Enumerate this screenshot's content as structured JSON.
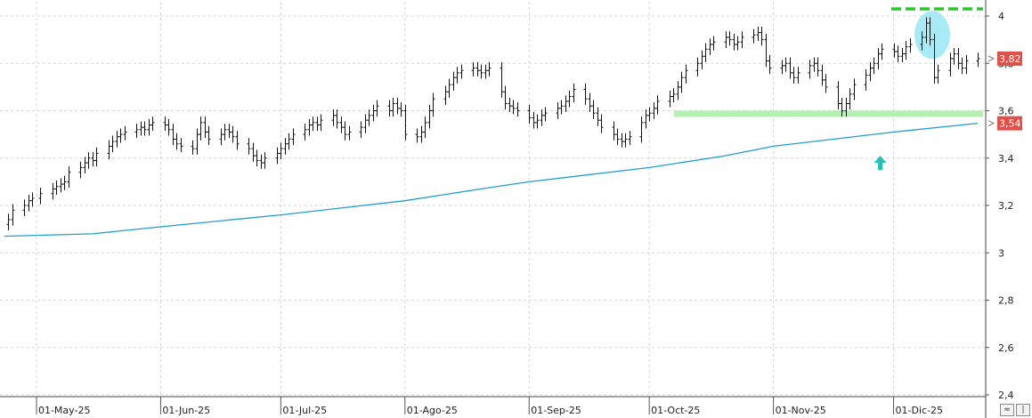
{
  "chart_data": {
    "type": "ohlc",
    "title": "",
    "x_tick_labels": [
      "01-May-25",
      "01-Jun-25",
      "01-Jul-25",
      "01-Ago-25",
      "01-Sep-25",
      "01-Oct-25",
      "01-Nov-25",
      "01-Dic-25"
    ],
    "y_tick_labels": [
      "2,4",
      "2,6",
      "2,8",
      "3",
      "3,2",
      "3,4",
      "3,6",
      "3,8",
      "4"
    ],
    "y_ticks": [
      2.4,
      2.6,
      2.8,
      3.0,
      3.2,
      3.4,
      3.6,
      3.8,
      4.0
    ],
    "ylim": [
      2.38,
      4.05
    ],
    "x_range": [
      "2025-04-23",
      "2025-12-22"
    ],
    "grid": true,
    "price_series": {
      "name": "",
      "points": [
        [
          "2025-04-24",
          3.14
        ],
        [
          "2025-04-25",
          3.18
        ],
        [
          "2025-04-28",
          3.2
        ],
        [
          "2025-04-29",
          3.22
        ],
        [
          "2025-04-30",
          3.23
        ],
        [
          "2025-05-02",
          3.25
        ],
        [
          "2025-05-05",
          3.27
        ],
        [
          "2025-05-06",
          3.28
        ],
        [
          "2025-05-07",
          3.29
        ],
        [
          "2025-05-08",
          3.3
        ],
        [
          "2025-05-09",
          3.34
        ],
        [
          "2025-05-12",
          3.36
        ],
        [
          "2025-05-13",
          3.38
        ],
        [
          "2025-05-14",
          3.4
        ],
        [
          "2025-05-15",
          3.39
        ],
        [
          "2025-05-16",
          3.42
        ],
        [
          "2025-05-19",
          3.45
        ],
        [
          "2025-05-20",
          3.47
        ],
        [
          "2025-05-21",
          3.49
        ],
        [
          "2025-05-22",
          3.5
        ],
        [
          "2025-05-23",
          3.51
        ],
        [
          "2025-05-26",
          3.52
        ],
        [
          "2025-05-27",
          3.53
        ],
        [
          "2025-05-28",
          3.52
        ],
        [
          "2025-05-29",
          3.54
        ],
        [
          "2025-05-30",
          3.55
        ],
        [
          "2025-06-02",
          3.54
        ],
        [
          "2025-06-03",
          3.52
        ],
        [
          "2025-06-04",
          3.48
        ],
        [
          "2025-06-05",
          3.46
        ],
        [
          "2025-06-06",
          3.45
        ],
        [
          "2025-06-09",
          3.44
        ],
        [
          "2025-06-10",
          3.5
        ],
        [
          "2025-06-11",
          3.55
        ],
        [
          "2025-06-12",
          3.51
        ],
        [
          "2025-06-13",
          3.48
        ],
        [
          "2025-06-16",
          3.5
        ],
        [
          "2025-06-17",
          3.52
        ],
        [
          "2025-06-18",
          3.51
        ],
        [
          "2025-06-19",
          3.49
        ],
        [
          "2025-06-20",
          3.46
        ],
        [
          "2025-06-23",
          3.44
        ],
        [
          "2025-06-24",
          3.41
        ],
        [
          "2025-06-25",
          3.39
        ],
        [
          "2025-06-26",
          3.38
        ],
        [
          "2025-06-27",
          3.4
        ],
        [
          "2025-06-30",
          3.42
        ],
        [
          "2025-07-01",
          3.44
        ],
        [
          "2025-07-02",
          3.46
        ],
        [
          "2025-07-03",
          3.48
        ],
        [
          "2025-07-04",
          3.5
        ],
        [
          "2025-07-07",
          3.52
        ],
        [
          "2025-07-08",
          3.54
        ],
        [
          "2025-07-09",
          3.55
        ],
        [
          "2025-07-10",
          3.54
        ],
        [
          "2025-07-11",
          3.56
        ],
        [
          "2025-07-14",
          3.58
        ],
        [
          "2025-07-15",
          3.55
        ],
        [
          "2025-07-16",
          3.53
        ],
        [
          "2025-07-17",
          3.5
        ],
        [
          "2025-07-18",
          3.51
        ],
        [
          "2025-07-21",
          3.53
        ],
        [
          "2025-07-22",
          3.56
        ],
        [
          "2025-07-23",
          3.58
        ],
        [
          "2025-07-24",
          3.6
        ],
        [
          "2025-07-25",
          3.62
        ],
        [
          "2025-07-28",
          3.6
        ],
        [
          "2025-07-29",
          3.63
        ],
        [
          "2025-07-30",
          3.61
        ],
        [
          "2025-07-31",
          3.6
        ],
        [
          "2025-08-01",
          3.5
        ],
        [
          "2025-08-04",
          3.49
        ],
        [
          "2025-08-05",
          3.51
        ],
        [
          "2025-08-06",
          3.55
        ],
        [
          "2025-08-07",
          3.6
        ],
        [
          "2025-08-08",
          3.65
        ],
        [
          "2025-08-11",
          3.68
        ],
        [
          "2025-08-12",
          3.71
        ],
        [
          "2025-08-13",
          3.74
        ],
        [
          "2025-08-14",
          3.76
        ],
        [
          "2025-08-15",
          3.77
        ],
        [
          "2025-08-18",
          3.78
        ],
        [
          "2025-08-19",
          3.77
        ],
        [
          "2025-08-20",
          3.76
        ],
        [
          "2025-08-21",
          3.77
        ],
        [
          "2025-08-22",
          3.78
        ],
        [
          "2025-08-25",
          3.68
        ],
        [
          "2025-08-26",
          3.63
        ],
        [
          "2025-08-27",
          3.62
        ],
        [
          "2025-08-28",
          3.61
        ],
        [
          "2025-08-29",
          3.6
        ],
        [
          "2025-09-01",
          3.57
        ],
        [
          "2025-09-02",
          3.55
        ],
        [
          "2025-09-03",
          3.56
        ],
        [
          "2025-09-04",
          3.58
        ],
        [
          "2025-09-05",
          3.59
        ],
        [
          "2025-09-08",
          3.61
        ],
        [
          "2025-09-09",
          3.62
        ],
        [
          "2025-09-10",
          3.64
        ],
        [
          "2025-09-11",
          3.66
        ],
        [
          "2025-09-12",
          3.69
        ],
        [
          "2025-09-15",
          3.65
        ],
        [
          "2025-09-16",
          3.62
        ],
        [
          "2025-09-17",
          3.59
        ],
        [
          "2025-09-18",
          3.56
        ],
        [
          "2025-09-19",
          3.53
        ],
        [
          "2025-09-22",
          3.5
        ],
        [
          "2025-09-23",
          3.48
        ],
        [
          "2025-09-24",
          3.47
        ],
        [
          "2025-09-25",
          3.48
        ],
        [
          "2025-09-26",
          3.49
        ],
        [
          "2025-09-29",
          3.55
        ],
        [
          "2025-09-30",
          3.58
        ],
        [
          "2025-10-01",
          3.59
        ],
        [
          "2025-10-02",
          3.61
        ],
        [
          "2025-10-03",
          3.64
        ],
        [
          "2025-10-06",
          3.66
        ],
        [
          "2025-10-07",
          3.67
        ],
        [
          "2025-10-08",
          3.7
        ],
        [
          "2025-10-09",
          3.74
        ],
        [
          "2025-10-10",
          3.77
        ],
        [
          "2025-10-13",
          3.8
        ],
        [
          "2025-10-14",
          3.83
        ],
        [
          "2025-10-15",
          3.86
        ],
        [
          "2025-10-16",
          3.88
        ],
        [
          "2025-10-17",
          3.89
        ],
        [
          "2025-10-20",
          3.91
        ],
        [
          "2025-10-21",
          3.9
        ],
        [
          "2025-10-22",
          3.88
        ],
        [
          "2025-10-23",
          3.89
        ],
        [
          "2025-10-24",
          3.91
        ],
        [
          "2025-10-27",
          3.92
        ],
        [
          "2025-10-28",
          3.93
        ],
        [
          "2025-10-29",
          3.9
        ],
        [
          "2025-10-30",
          3.81
        ],
        [
          "2025-10-31",
          3.78
        ],
        [
          "2025-11-03",
          3.79
        ],
        [
          "2025-11-04",
          3.8
        ],
        [
          "2025-11-05",
          3.76
        ],
        [
          "2025-11-06",
          3.74
        ],
        [
          "2025-11-07",
          3.76
        ],
        [
          "2025-11-10",
          3.79
        ],
        [
          "2025-11-11",
          3.8
        ],
        [
          "2025-11-12",
          3.77
        ],
        [
          "2025-11-13",
          3.73
        ],
        [
          "2025-11-14",
          3.7
        ],
        [
          "2025-11-17",
          3.63
        ],
        [
          "2025-11-18",
          3.6
        ],
        [
          "2025-11-19",
          3.63
        ],
        [
          "2025-11-20",
          3.67
        ],
        [
          "2025-11-21",
          3.71
        ],
        [
          "2025-11-24",
          3.75
        ],
        [
          "2025-11-25",
          3.78
        ],
        [
          "2025-11-26",
          3.8
        ],
        [
          "2025-11-27",
          3.84
        ],
        [
          "2025-11-28",
          3.86
        ],
        [
          "2025-12-01",
          3.85
        ],
        [
          "2025-12-02",
          3.83
        ],
        [
          "2025-12-03",
          3.84
        ],
        [
          "2025-12-04",
          3.87
        ],
        [
          "2025-12-05",
          3.88
        ],
        [
          "2025-12-08",
          3.91
        ],
        [
          "2025-12-09",
          3.97
        ],
        [
          "2025-12-10",
          3.9
        ],
        [
          "2025-12-11",
          3.74
        ],
        [
          "2025-12-12",
          3.77
        ],
        [
          "2025-12-15",
          3.82
        ],
        [
          "2025-12-16",
          3.84
        ],
        [
          "2025-12-17",
          3.8
        ],
        [
          "2025-12-18",
          3.78
        ],
        [
          "2025-12-19",
          3.81
        ],
        [
          "2025-12-22",
          3.82
        ]
      ]
    },
    "moving_average": {
      "name": "",
      "points": [
        [
          "2025-04-23",
          3.07
        ],
        [
          "2025-05-15",
          3.08
        ],
        [
          "2025-06-01",
          3.11
        ],
        [
          "2025-07-01",
          3.16
        ],
        [
          "2025-08-01",
          3.22
        ],
        [
          "2025-08-20",
          3.27
        ],
        [
          "2025-09-01",
          3.3
        ],
        [
          "2025-10-01",
          3.36
        ],
        [
          "2025-10-20",
          3.41
        ],
        [
          "2025-11-01",
          3.45
        ],
        [
          "2025-12-01",
          3.51
        ],
        [
          "2025-12-22",
          3.547
        ]
      ]
    },
    "last_price_label": "3,82",
    "last_price": 3.82,
    "ma_value_label": "3,547",
    "ma_value": 3.547,
    "annotations": {
      "resistance_level": 4.03,
      "support_level": 3.587,
      "ellipse_center": [
        "2025-12-10",
        3.92
      ],
      "arrow_at": [
        "2025-11-27",
        3.38
      ]
    },
    "colors": {
      "price_bars": "#111111",
      "moving_average": "#1f9fce",
      "resistance_line": "#22cc22",
      "support_band": "#b6f0b0",
      "highlight_ellipse": "#a8eaf6",
      "arrow": "#2bbfb8",
      "badge": "#e0504a",
      "grid": "#d6d6d6"
    }
  },
  "corner_buttons": [
    "≈",
    "|"
  ]
}
